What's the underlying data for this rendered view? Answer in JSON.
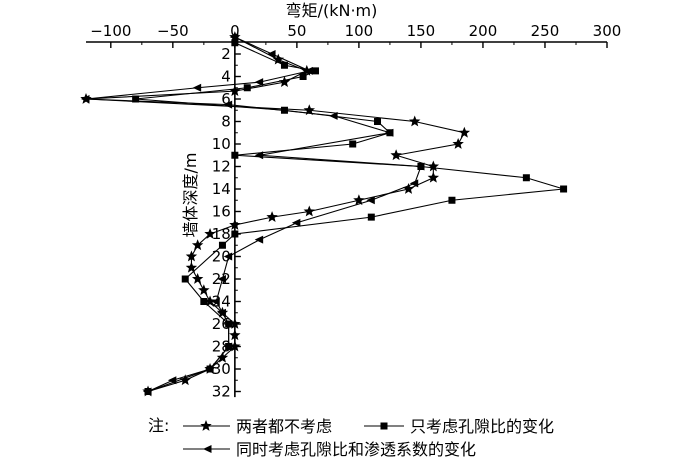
{
  "chart_data": {
    "type": "line",
    "xlabel": "弯矩/(kN·m)",
    "ylabel": "墙体深度/m",
    "x_axis_position": "top",
    "y_axis_direction": "downward",
    "xlim": [
      -120,
      300
    ],
    "ylim": [
      0,
      32.5
    ],
    "xticks": [
      -100,
      -50,
      0,
      50,
      100,
      150,
      200,
      250,
      300
    ],
    "xtick_labels": [
      "−100",
      "−50",
      "0",
      "50",
      "100",
      "150",
      "200",
      "250",
      "300"
    ],
    "yticks": [
      2,
      4,
      6,
      8,
      10,
      12,
      14,
      16,
      18,
      20,
      22,
      24,
      26,
      28,
      30,
      32
    ],
    "ytick_labels": [
      "2",
      "4",
      "6",
      "8",
      "10",
      "12",
      "14",
      "16",
      "18",
      "20",
      "22",
      "24",
      "26",
      "28",
      "30",
      "32"
    ],
    "grid": false,
    "legend_placement": "bottom",
    "legend_prefix": "注:",
    "series": [
      {
        "name": "两者都不考虑",
        "marker": "star",
        "points": [
          [
            0,
            0.5
          ],
          [
            35,
            2.5
          ],
          [
            58,
            3.5
          ],
          [
            40,
            4.5
          ],
          [
            0,
            5.3
          ],
          [
            -120,
            6.0
          ],
          [
            60,
            7.0
          ],
          [
            145,
            8.0
          ],
          [
            185,
            9.0
          ],
          [
            180,
            10.0
          ],
          [
            130,
            11.0
          ],
          [
            160,
            12.0
          ],
          [
            160,
            13.0
          ],
          [
            140,
            14.0
          ],
          [
            100,
            15.0
          ],
          [
            60,
            16.0
          ],
          [
            30,
            16.5
          ],
          [
            0,
            17.2
          ],
          [
            -20,
            18.0
          ],
          [
            -30,
            19.0
          ],
          [
            -35,
            20.0
          ],
          [
            -35,
            21.0
          ],
          [
            -30,
            22.0
          ],
          [
            -25,
            23.0
          ],
          [
            -20,
            24.0
          ],
          [
            -10,
            25.0
          ],
          [
            0,
            26.0
          ],
          [
            0,
            27.0
          ],
          [
            0,
            28.0
          ],
          [
            -10,
            29.0
          ],
          [
            -20,
            30.0
          ],
          [
            -40,
            31.0
          ],
          [
            -70,
            32.0
          ]
        ]
      },
      {
        "name": "只考虑孔隙比的变化",
        "marker": "square",
        "points": [
          [
            0,
            1.0
          ],
          [
            40,
            3.0
          ],
          [
            65,
            3.5
          ],
          [
            55,
            4.0
          ],
          [
            10,
            5.0
          ],
          [
            -80,
            6.0
          ],
          [
            40,
            7.0
          ],
          [
            115,
            8.0
          ],
          [
            125,
            9.0
          ],
          [
            95,
            10.0
          ],
          [
            0,
            11.0
          ],
          [
            150,
            12.0
          ],
          [
            235,
            13.0
          ],
          [
            265,
            14.0
          ],
          [
            175,
            15.0
          ],
          [
            110,
            16.5
          ],
          [
            0,
            18.0
          ],
          [
            -10,
            19.0
          ],
          [
            -40,
            22.0
          ],
          [
            -25,
            24.0
          ],
          [
            -5,
            26.0
          ],
          [
            -5,
            28.0
          ],
          [
            -20,
            30.0
          ],
          [
            -70,
            32.0
          ]
        ]
      },
      {
        "name": "同时考虑孔隙比和渗透系数的变化",
        "marker": "triangle-left",
        "points": [
          [
            0,
            0.5
          ],
          [
            30,
            2.0
          ],
          [
            60,
            3.5
          ],
          [
            20,
            4.5
          ],
          [
            -30,
            5.0
          ],
          [
            -120,
            6.0
          ],
          [
            -5,
            6.5
          ],
          [
            80,
            7.5
          ],
          [
            125,
            9.0
          ],
          [
            20,
            11.0
          ],
          [
            150,
            12.0
          ],
          [
            145,
            13.5
          ],
          [
            110,
            15.0
          ],
          [
            50,
            17.0
          ],
          [
            20,
            18.5
          ],
          [
            -5,
            20.0
          ],
          [
            -10,
            22.0
          ],
          [
            -15,
            24.0
          ],
          [
            -10,
            25.0
          ],
          [
            -5,
            26.0
          ],
          [
            -5,
            28.0
          ],
          [
            -20,
            30.0
          ],
          [
            -50,
            31.0
          ],
          [
            -70,
            32.0
          ]
        ]
      }
    ]
  }
}
